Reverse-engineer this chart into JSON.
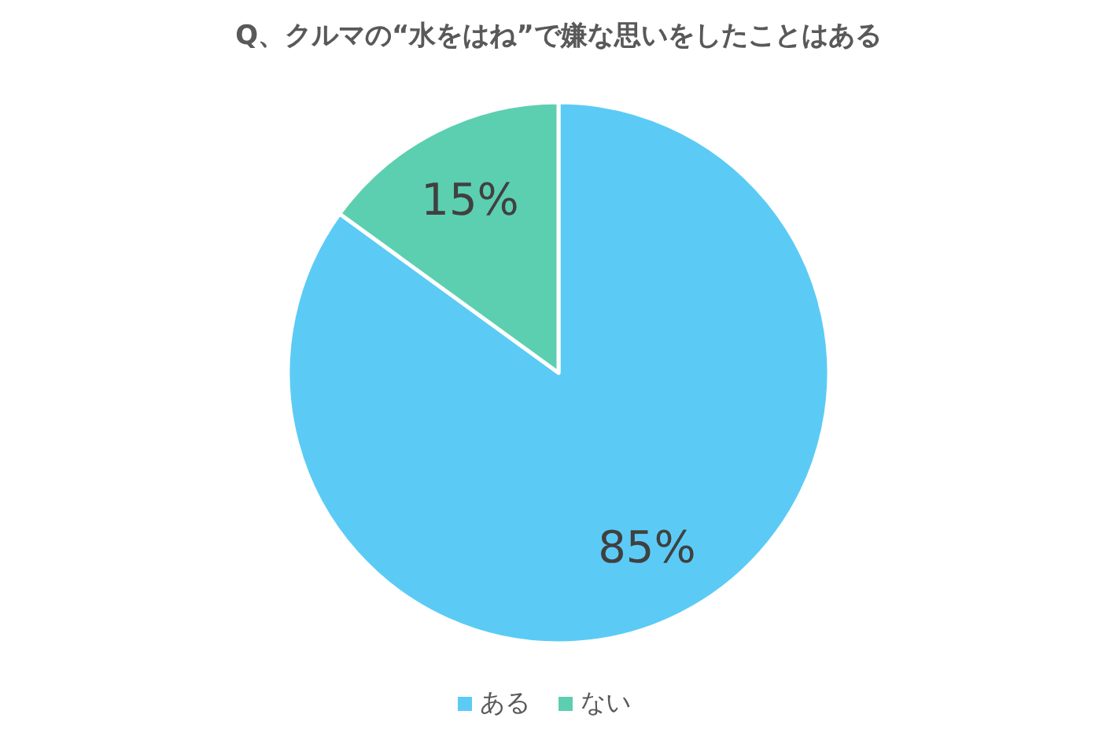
{
  "chart_data": {
    "type": "pie",
    "title": "Q、クルマの“水をはね”で嫌な思いをしたことはある",
    "categories": [
      "ある",
      "ない"
    ],
    "values": [
      85,
      15
    ],
    "colors": [
      "#5bcbf5",
      "#5ccfb0"
    ],
    "value_labels": [
      "85%",
      "15%"
    ],
    "legend": "bottom"
  }
}
